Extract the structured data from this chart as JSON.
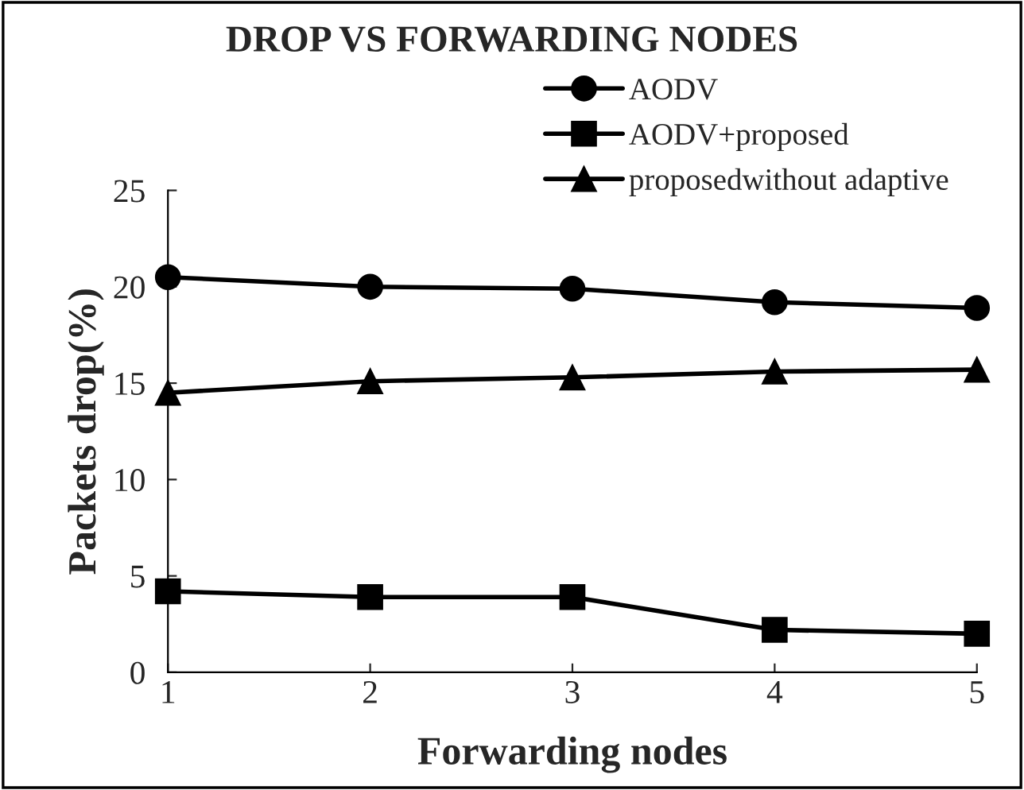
{
  "chart_data": {
    "type": "line",
    "title": "DROP VS FORWARDING NODES",
    "xlabel": "Forwarding nodes",
    "ylabel": "Packets drop(%)",
    "x": [
      1,
      2,
      3,
      4,
      5
    ],
    "xlim": [
      1,
      5
    ],
    "xticks": [
      1,
      2,
      3,
      4,
      5
    ],
    "ylim": [
      0,
      25
    ],
    "yticks": [
      0,
      5,
      10,
      15,
      20,
      25
    ],
    "grid": false,
    "legend": "top right",
    "series": [
      {
        "name": "AODV",
        "color": "#000000",
        "marker": "circle",
        "values": [
          20.5,
          20.0,
          19.9,
          19.2,
          18.9
        ]
      },
      {
        "name": "AODV+proposed",
        "color": "#000000",
        "marker": "square",
        "values": [
          4.2,
          3.9,
          3.9,
          2.2,
          2.0
        ]
      },
      {
        "name": "proposedwithout adaptive",
        "color": "#000000",
        "marker": "triangle",
        "values": [
          14.5,
          15.1,
          15.3,
          15.6,
          15.7
        ]
      }
    ]
  }
}
